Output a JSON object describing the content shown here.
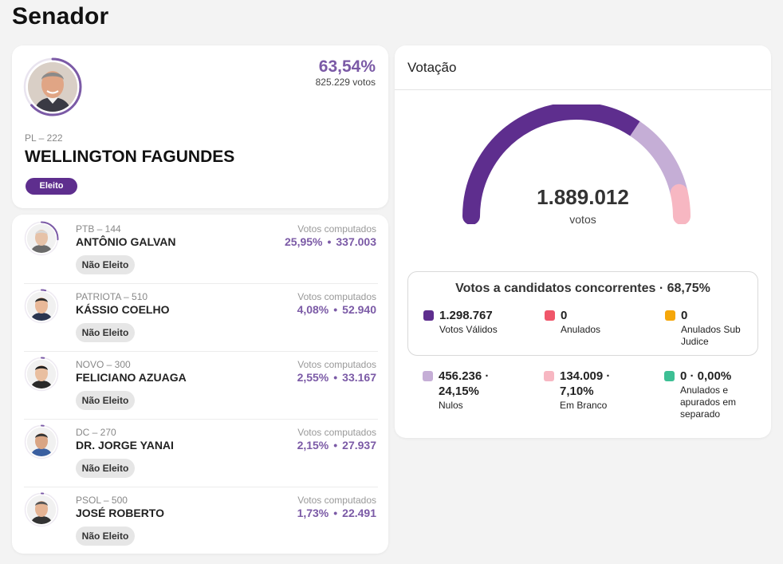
{
  "page_title": "Senador",
  "winner": {
    "party": "PL – 222",
    "name": "WELLINGTON FAGUNDES",
    "percent": "63,54%",
    "votes": "825.229 votos",
    "badge": "Eleito",
    "ring_fraction": 0.6354
  },
  "candidates": [
    {
      "party": "PTB – 144",
      "name": "ANTÔNIO GALVAN",
      "label": "Votos computados",
      "percent": "25,95%",
      "votes": "337.003",
      "badge": "Não Eleito",
      "ring_fraction": 0.2595
    },
    {
      "party": "PATRIOTA – 510",
      "name": "KÁSSIO COELHO",
      "label": "Votos computados",
      "percent": "4,08%",
      "votes": "52.940",
      "badge": "Não Eleito",
      "ring_fraction": 0.0408
    },
    {
      "party": "NOVO – 300",
      "name": "FELICIANO AZUAGA",
      "label": "Votos computados",
      "percent": "2,55%",
      "votes": "33.167",
      "badge": "Não Eleito",
      "ring_fraction": 0.0255
    },
    {
      "party": "DC – 270",
      "name": "DR. JORGE YANAI",
      "label": "Votos computados",
      "percent": "2,15%",
      "votes": "27.937",
      "badge": "Não Eleito",
      "ring_fraction": 0.0215
    },
    {
      "party": "PSOL – 500",
      "name": "JOSÉ ROBERTO",
      "label": "Votos computados",
      "percent": "1,73%",
      "votes": "22.491",
      "badge": "Não Eleito",
      "ring_fraction": 0.0173
    }
  ],
  "votacao": {
    "title": "Votação",
    "total": "1.889.012",
    "unit": "votos",
    "gauge_segments": [
      {
        "fraction": 0.6875,
        "color": "#5e2e8e"
      },
      {
        "fraction": 0.2415,
        "color": "#c5aed6"
      },
      {
        "fraction": 0.071,
        "color": "#f7b7c2"
      }
    ],
    "valid_title": "Votos a candidatos concorrentes · 68,75%",
    "valid_stats": [
      {
        "value": "1.298.767",
        "label": "Votos Válidos",
        "color": "#5e2e8e"
      },
      {
        "value": "0",
        "label": "Anulados",
        "color": "#f0566a"
      },
      {
        "value": "0",
        "label": "Anulados Sub Judice",
        "color": "#f5a70a"
      }
    ],
    "other_stats": [
      {
        "value": "456.236 ·\n24,15%",
        "label": "Nulos",
        "color": "#c5aed6"
      },
      {
        "value": "134.009 ·\n7,10%",
        "label": "Em Branco",
        "color": "#f7b7c2"
      },
      {
        "value": "0 · 0,00%",
        "label": "Anulados e apurados em separado",
        "color": "#3dbf94"
      }
    ]
  }
}
